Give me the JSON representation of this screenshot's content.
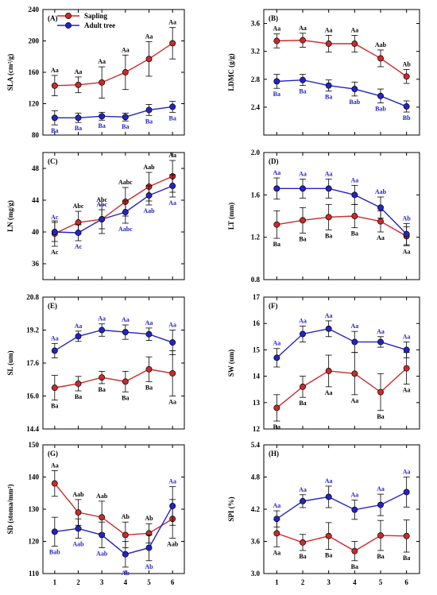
{
  "legend": [
    {
      "name": "Sapling",
      "color": "#cc2a2a"
    },
    {
      "name": "Adult tree",
      "color": "#2323c8"
    }
  ],
  "colors": {
    "sapling": "#cc2a2a",
    "adult": "#2323c8",
    "axis": "#000000"
  },
  "chart_data": [
    {
      "type": "line",
      "panel": "(A)",
      "ylabel": "SLA (cm²/g)",
      "x": [
        1,
        2,
        3,
        4,
        5,
        6
      ],
      "ylim": [
        80,
        240
      ],
      "yticks": [
        80,
        120,
        160,
        200,
        240
      ],
      "grid": false,
      "series": [
        {
          "name": "Sapling",
          "values": [
            143,
            144,
            147,
            160,
            177,
            197
          ],
          "errors": [
            13,
            10,
            20,
            22,
            22,
            20
          ],
          "labels": [
            "Aa",
            "Aa",
            "Aa",
            "Aa",
            "Aa",
            "Aa"
          ]
        },
        {
          "name": "Adult tree",
          "values": [
            102,
            102,
            104,
            103,
            112,
            116
          ],
          "errors": [
            9,
            6,
            5,
            5,
            7,
            7
          ],
          "labels": [
            "Ba",
            "Ba",
            "Ba",
            "Ba",
            "Ba",
            "Ba"
          ]
        }
      ]
    },
    {
      "type": "line",
      "panel": "(B)",
      "ylabel": "LDMC (g/g)",
      "x": [
        1,
        2,
        3,
        4,
        5,
        6
      ],
      "ylim": [
        2.0,
        3.8
      ],
      "yticks": [
        2.4,
        2.8,
        3.2,
        3.6
      ],
      "grid": false,
      "series": [
        {
          "name": "Sapling",
          "values": [
            3.35,
            3.36,
            3.31,
            3.31,
            3.1,
            2.84
          ],
          "errors": [
            0.1,
            0.1,
            0.12,
            0.12,
            0.12,
            0.1
          ],
          "labels": [
            "Aa",
            "Aa",
            "Aa",
            "Aa",
            "Aab",
            "Ab"
          ]
        },
        {
          "name": "Adult tree",
          "values": [
            2.77,
            2.79,
            2.71,
            2.66,
            2.56,
            2.41
          ],
          "errors": [
            0.1,
            0.08,
            0.08,
            0.1,
            0.1,
            0.08
          ],
          "labels": [
            "Ba",
            "Ba",
            "Ba",
            "Bab",
            "Bab",
            "Bb"
          ]
        }
      ]
    },
    {
      "type": "line",
      "panel": "(C)",
      "ylabel": "LN (mg/g)",
      "x": [
        1,
        2,
        3,
        4,
        5,
        6
      ],
      "ylim": [
        34,
        50
      ],
      "yticks": [
        36,
        40,
        44,
        48
      ],
      "grid": false,
      "series": [
        {
          "name": "Sapling",
          "values": [
            39.8,
            41.2,
            41.6,
            43.8,
            45.7,
            47.0
          ],
          "errors": [
            1.6,
            1.4,
            1.8,
            1.8,
            1.8,
            2.0
          ],
          "labels": [
            "Ac",
            "Abc",
            "Abc",
            "Aabc",
            "Aab",
            "Aa"
          ]
        },
        {
          "name": "Adult tree",
          "values": [
            40.0,
            39.9,
            41.6,
            42.5,
            44.6,
            45.8
          ],
          "errors": [
            1.2,
            1.0,
            1.2,
            1.4,
            1.2,
            1.4
          ],
          "labels": [
            "Ac",
            "Ac",
            "Abc",
            "Aabc",
            "Aab",
            "Aa"
          ]
        }
      ]
    },
    {
      "type": "line",
      "panel": "(D)",
      "ylabel": "LT (mm)",
      "x": [
        1,
        2,
        3,
        4,
        5,
        6
      ],
      "ylim": [
        0.8,
        2.0
      ],
      "yticks": [
        0.8,
        1.2,
        1.6,
        2.0
      ],
      "grid": false,
      "series": [
        {
          "name": "Sapling",
          "values": [
            1.32,
            1.36,
            1.39,
            1.4,
            1.35,
            1.21
          ],
          "errors": [
            0.13,
            0.12,
            0.12,
            0.11,
            0.1,
            0.09
          ],
          "labels": [
            "Ba",
            "Ba",
            "Ba",
            "Ba",
            "Aa",
            "Aa"
          ]
        },
        {
          "name": "Adult tree",
          "values": [
            1.66,
            1.66,
            1.66,
            1.6,
            1.48,
            1.23
          ],
          "errors": [
            0.1,
            0.09,
            0.09,
            0.09,
            0.1,
            0.1
          ],
          "labels": [
            "Aa",
            "Aa",
            "Aa",
            "Aa",
            "Aab",
            "Ab"
          ]
        }
      ]
    },
    {
      "type": "line",
      "panel": "(E)",
      "ylabel": "SL (um)",
      "x": [
        1,
        2,
        3,
        4,
        5,
        6
      ],
      "ylim": [
        14.4,
        20.8
      ],
      "yticks": [
        14.4,
        16.0,
        17.6,
        19.2,
        20.8
      ],
      "grid": false,
      "series": [
        {
          "name": "Sapling",
          "values": [
            16.4,
            16.6,
            16.9,
            16.7,
            17.3,
            17.1
          ],
          "errors": [
            0.6,
            0.35,
            0.3,
            0.5,
            0.6,
            1.1
          ],
          "labels": [
            "Ba",
            "Ba",
            "Ba",
            "Ba",
            "Ba",
            "Aa"
          ]
        },
        {
          "name": "Adult tree",
          "values": [
            18.2,
            18.9,
            19.2,
            19.1,
            19.0,
            18.6
          ],
          "errors": [
            0.35,
            0.25,
            0.3,
            0.35,
            0.3,
            0.6
          ],
          "labels": [
            "Aa",
            "Aa",
            "Aa",
            "Aa",
            "Aa",
            "Aa"
          ]
        }
      ]
    },
    {
      "type": "line",
      "panel": "(F)",
      "ylabel": "SW (um)",
      "x": [
        1,
        2,
        3,
        4,
        5,
        6
      ],
      "ylim": [
        12,
        17
      ],
      "yticks": [
        12,
        13,
        14,
        15,
        16,
        17
      ],
      "grid": false,
      "series": [
        {
          "name": "Sapling",
          "values": [
            12.8,
            13.6,
            14.2,
            14.1,
            13.4,
            14.3
          ],
          "errors": [
            0.5,
            0.4,
            0.6,
            0.8,
            0.7,
            0.6
          ],
          "labels": [
            "Ba",
            "Ba",
            "Aa",
            "Aa",
            "Ba",
            "Aa"
          ]
        },
        {
          "name": "Adult tree",
          "values": [
            14.7,
            15.6,
            15.8,
            15.3,
            15.3,
            15.0
          ],
          "errors": [
            0.35,
            0.3,
            0.3,
            0.4,
            0.2,
            0.3
          ],
          "labels": [
            "Aa",
            "Aa",
            "Aa",
            "Aa",
            "Aa",
            "Aa"
          ]
        }
      ]
    },
    {
      "type": "line",
      "panel": "(G)",
      "ylabel": "SD (stoma/mm²)",
      "x": [
        1,
        2,
        3,
        4,
        5,
        6
      ],
      "ylim": [
        110,
        150
      ],
      "yticks": [
        110,
        120,
        130,
        140,
        150
      ],
      "grid": false,
      "series": [
        {
          "name": "Sapling",
          "values": [
            138,
            129,
            127.5,
            122,
            122.5,
            127
          ],
          "errors": [
            4,
            4,
            5,
            4,
            3,
            6
          ],
          "labels": [
            "Aa",
            "Aab",
            "Aab",
            "Ab",
            "Ab",
            "Aab"
          ]
        },
        {
          "name": "Adult tree",
          "values": [
            123,
            124,
            122,
            116,
            118,
            131
          ],
          "errors": [
            4.5,
            3,
            4,
            4,
            4,
            6
          ],
          "labels": [
            "Bab",
            "Aab",
            "Aab",
            "Ab",
            "Ab",
            "Aa"
          ]
        }
      ]
    },
    {
      "type": "line",
      "panel": "(H)",
      "ylabel": "SPI (%)",
      "x": [
        1,
        2,
        3,
        4,
        5,
        6
      ],
      "ylim": [
        3.0,
        5.4
      ],
      "yticks": [
        3.0,
        3.6,
        4.2,
        4.8,
        5.4
      ],
      "grid": false,
      "series": [
        {
          "name": "Sapling",
          "values": [
            3.75,
            3.58,
            3.7,
            3.42,
            3.71,
            3.7
          ],
          "errors": [
            0.25,
            0.15,
            0.25,
            0.18,
            0.28,
            0.3
          ],
          "labels": [
            "Aa",
            "Ba",
            "Ba",
            "Ba",
            "Ba",
            "Ba"
          ]
        },
        {
          "name": "Adult tree",
          "values": [
            4.02,
            4.35,
            4.43,
            4.19,
            4.28,
            4.52
          ],
          "errors": [
            0.15,
            0.12,
            0.2,
            0.18,
            0.2,
            0.28
          ],
          "labels": [
            "Aa",
            "Aa",
            "Aa",
            "Aa",
            "Aa",
            "Aa"
          ]
        }
      ]
    }
  ]
}
